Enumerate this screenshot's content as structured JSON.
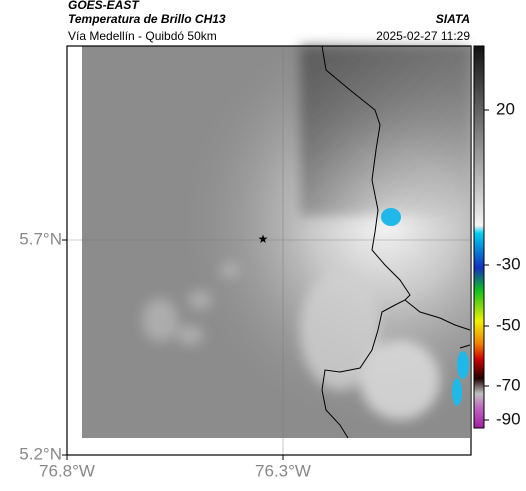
{
  "header": {
    "satellite": "GOES-EAST",
    "product": "Temperatura de Brillo CH13",
    "source": "SIATA",
    "region": "Vía Medellín - Quibdó 50km",
    "datetime": "2025-02-27 11:29"
  },
  "lat_labels": [
    "5.7°N",
    "5.2°N"
  ],
  "lon_labels": [
    "76.8°W",
    "76.3°W"
  ],
  "colorbar_ticks": [
    20,
    -30,
    -50,
    -70,
    -90
  ]
}
